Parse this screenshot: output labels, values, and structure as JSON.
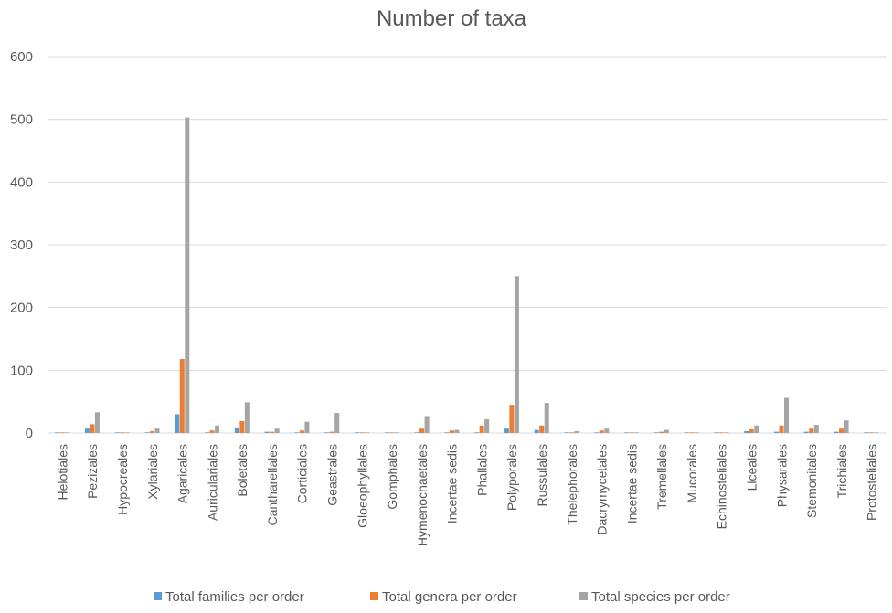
{
  "chart_data": {
    "type": "bar",
    "title": "Number of taxa",
    "xlabel": "",
    "ylabel": "",
    "ylim": [
      0,
      600
    ],
    "yticks": [
      0,
      100,
      200,
      300,
      400,
      500,
      600
    ],
    "grid": true,
    "legend_position": "bottom",
    "categories": [
      "Helotiales",
      "Pezizales",
      "Hypocreales",
      "Xylariales",
      "Agaricales",
      "Auriculariales",
      "Boletales",
      "Cantharellales",
      "Corticiales",
      "Geastrales",
      "Gloeophyllales",
      "Gomphales",
      "Hymenochaetales",
      "Incertae sedis",
      "Phallales",
      "Polyporales",
      "Russulales",
      "Thelephorales",
      "Dacrymycetales",
      "Incertae sedis",
      "Tremellales",
      "Mucorales",
      "Echinosteliales",
      "Liceales",
      "Physarales",
      "Stemonitales",
      "Trichiales",
      "Protosteliales"
    ],
    "series": [
      {
        "name": "Total families per order",
        "color": "#5B9BD5",
        "values": [
          1,
          7,
          1,
          1,
          30,
          1,
          9,
          2,
          1,
          1,
          1,
          1,
          1,
          1,
          1,
          7,
          5,
          1,
          1,
          1,
          1,
          1,
          1,
          3,
          2,
          2,
          2,
          1
        ]
      },
      {
        "name": "Total genera per order",
        "color": "#ED7D31",
        "values": [
          1,
          14,
          1,
          3,
          118,
          4,
          19,
          2,
          4,
          2,
          1,
          1,
          7,
          4,
          12,
          45,
          12,
          1,
          4,
          1,
          2,
          1,
          1,
          6,
          12,
          7,
          7,
          1
        ]
      },
      {
        "name": "Total species per order",
        "color": "#A5A5A5",
        "values": [
          1,
          33,
          1,
          7,
          503,
          12,
          49,
          7,
          18,
          32,
          1,
          1,
          27,
          5,
          22,
          250,
          48,
          3,
          7,
          1,
          5,
          1,
          1,
          12,
          56,
          13,
          20,
          1
        ]
      }
    ]
  }
}
